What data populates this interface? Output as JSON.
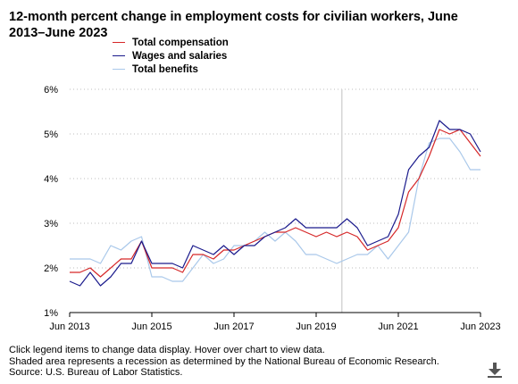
{
  "title": "12-month percent change in employment costs for civilian workers, June 2013–June 2023",
  "footer": {
    "line1": "Click legend items to change data display. Hover over chart to view data.",
    "line2": "Shaded area represents a recession as determined by the National Bureau of Economic Research.",
    "line3": "Source: U.S. Bureau of Labor Statistics."
  },
  "download_icon": "download-icon",
  "chart_data": {
    "type": "line",
    "title": "12-month percent change in employment costs for civilian workers, June 2013–June 2023",
    "xlabel": "",
    "ylabel": "",
    "ylim": [
      1,
      6
    ],
    "y_ticks": [
      "1%",
      "2%",
      "3%",
      "4%",
      "5%",
      "6%"
    ],
    "x_ticks": [
      "Jun 2013",
      "Jun 2015",
      "Jun 2017",
      "Jun 2019",
      "Jun 2021",
      "Jun 2023"
    ],
    "grid": "horizontal dotted",
    "legend_position": "top-left",
    "recession_marker": "2020Q1",
    "x": [
      "2013Q2",
      "2013Q3",
      "2013Q4",
      "2014Q1",
      "2014Q2",
      "2014Q3",
      "2014Q4",
      "2015Q1",
      "2015Q2",
      "2015Q3",
      "2015Q4",
      "2016Q1",
      "2016Q2",
      "2016Q3",
      "2016Q4",
      "2017Q1",
      "2017Q2",
      "2017Q3",
      "2017Q4",
      "2018Q1",
      "2018Q2",
      "2018Q3",
      "2018Q4",
      "2019Q1",
      "2019Q2",
      "2019Q3",
      "2019Q4",
      "2020Q1",
      "2020Q2",
      "2020Q3",
      "2020Q4",
      "2021Q1",
      "2021Q2",
      "2021Q3",
      "2021Q4",
      "2022Q1",
      "2022Q2",
      "2022Q3",
      "2022Q4",
      "2023Q1",
      "2023Q2"
    ],
    "series": [
      {
        "name": "Total compensation",
        "color": "#d62728",
        "values": [
          1.9,
          1.9,
          2.0,
          1.8,
          2.0,
          2.2,
          2.2,
          2.6,
          2.0,
          2.0,
          2.0,
          1.9,
          2.3,
          2.3,
          2.2,
          2.4,
          2.4,
          2.5,
          2.6,
          2.7,
          2.8,
          2.8,
          2.9,
          2.8,
          2.7,
          2.8,
          2.7,
          2.8,
          2.7,
          2.4,
          2.5,
          2.6,
          2.9,
          3.7,
          4.0,
          4.5,
          5.1,
          5.0,
          5.1,
          4.8,
          4.5
        ]
      },
      {
        "name": "Wages and salaries",
        "color": "#1a1a8c",
        "values": [
          1.7,
          1.6,
          1.9,
          1.6,
          1.8,
          2.1,
          2.1,
          2.6,
          2.1,
          2.1,
          2.1,
          2.0,
          2.5,
          2.4,
          2.3,
          2.5,
          2.3,
          2.5,
          2.5,
          2.7,
          2.8,
          2.9,
          3.1,
          2.9,
          2.9,
          2.9,
          2.9,
          3.1,
          2.9,
          2.5,
          2.6,
          2.7,
          3.2,
          4.2,
          4.5,
          4.7,
          5.3,
          5.1,
          5.1,
          5.0,
          4.6
        ]
      },
      {
        "name": "Total benefits",
        "color": "#a9c8ea",
        "values": [
          2.2,
          2.2,
          2.2,
          2.1,
          2.5,
          2.4,
          2.6,
          2.7,
          1.8,
          1.8,
          1.7,
          1.7,
          2.0,
          2.3,
          2.1,
          2.2,
          2.5,
          2.5,
          2.6,
          2.8,
          2.6,
          2.8,
          2.6,
          2.3,
          2.3,
          2.2,
          2.1,
          2.2,
          2.3,
          2.3,
          2.5,
          2.2,
          2.5,
          2.8,
          4.0,
          4.8,
          4.9,
          4.9,
          4.6,
          4.2,
          4.2
        ]
      }
    ]
  }
}
